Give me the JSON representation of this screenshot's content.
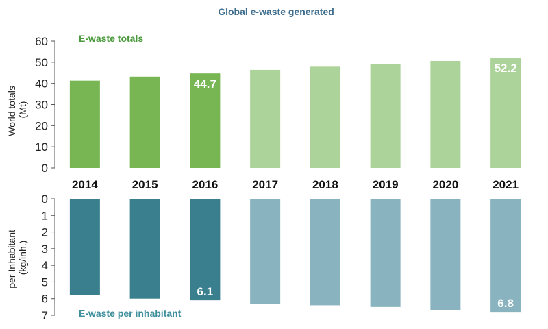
{
  "chart_data": {
    "title": "Global e-waste generated",
    "categories": [
      "2014",
      "2015",
      "2016",
      "2017",
      "2018",
      "2019",
      "2020",
      "2021"
    ],
    "type": "bar",
    "panels": [
      {
        "id": "top",
        "series_label": "E-waste totals",
        "ylabel_line1": "World totals",
        "ylabel_line2": "(Mt)",
        "ylim": [
          0,
          60
        ],
        "yticks": [
          "0",
          "10",
          "20",
          "30",
          "40",
          "50",
          "60"
        ],
        "values": [
          41.3,
          43.2,
          44.7,
          46.4,
          47.9,
          49.3,
          50.6,
          52.2
        ],
        "data_labels": {
          "2016": "44.7",
          "2021": "52.2"
        },
        "colors": {
          "actual": "#78b653",
          "projected": "#acd39a"
        }
      },
      {
        "id": "bottom",
        "series_label": "E-waste per inhabitant",
        "ylabel_line1": "per Inhabitant",
        "ylabel_line2": "(kg/inh.)",
        "ylim": [
          0,
          7
        ],
        "inverted": true,
        "yticks": [
          "0",
          "1",
          "2",
          "3",
          "4",
          "5",
          "6",
          "7"
        ],
        "values": [
          5.8,
          6.0,
          6.1,
          6.3,
          6.4,
          6.5,
          6.7,
          6.8
        ],
        "data_labels": {
          "2016": "6.1",
          "2021": "6.8"
        },
        "colors": {
          "actual": "#3a7f8e",
          "projected": "#88b3bf"
        }
      }
    ],
    "projected_from": "2017",
    "grid": false,
    "colors": {
      "title": "#3d6c8c",
      "top_label": "#4a9a3c",
      "bottom_label": "#3f8e9c"
    }
  }
}
